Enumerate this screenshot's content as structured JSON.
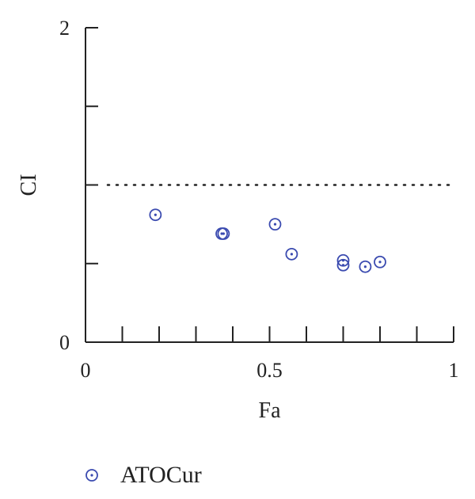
{
  "chart_data": {
    "type": "scatter",
    "xlabel": "Fa",
    "ylabel": "CI",
    "xlim": [
      0,
      1
    ],
    "ylim": [
      0,
      2
    ],
    "x_tick_labels": [
      "0",
      "0.5",
      "1"
    ],
    "y_tick_labels": [
      "0",
      "2"
    ],
    "reference_line": {
      "y": 1,
      "style": "dotted"
    },
    "grid": false,
    "legend_position": "bottom-left",
    "series_color": "#3b4bb0",
    "series": [
      {
        "name": "ATOCur",
        "marker": "circle-dot",
        "points": [
          {
            "x": 0.19,
            "y": 0.81
          },
          {
            "x": 0.37,
            "y": 0.69
          },
          {
            "x": 0.375,
            "y": 0.69
          },
          {
            "x": 0.515,
            "y": 0.75
          },
          {
            "x": 0.56,
            "y": 0.56
          },
          {
            "x": 0.7,
            "y": 0.52
          },
          {
            "x": 0.7,
            "y": 0.49
          },
          {
            "x": 0.76,
            "y": 0.48
          },
          {
            "x": 0.8,
            "y": 0.51
          }
        ]
      }
    ]
  }
}
